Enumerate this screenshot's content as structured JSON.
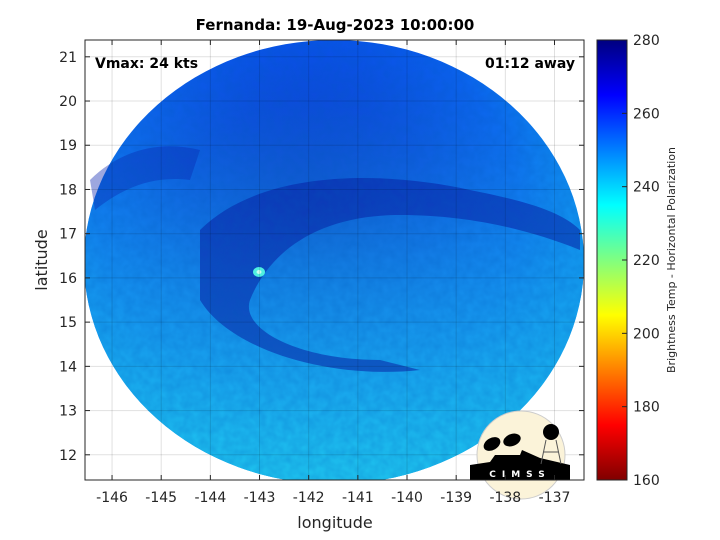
{
  "title": "Fernanda: 19-Aug-2023 10:00:00",
  "annotations": {
    "vmax": "Vmax: 24 kts",
    "time_away": "01:12 away"
  },
  "xaxis": {
    "label": "longitude",
    "ticks": [
      -146,
      -145,
      -144,
      -143,
      -142,
      -141,
      -140,
      -139,
      -138,
      -137
    ],
    "range": [
      -146.55,
      -136.4
    ]
  },
  "yaxis": {
    "label": "latitude",
    "ticks": [
      12,
      13,
      14,
      15,
      16,
      17,
      18,
      19,
      20,
      21
    ],
    "range": [
      11.43,
      21.38
    ]
  },
  "grid": true,
  "colorbar": {
    "label": "Brightness Temp - Horizontal Polarization",
    "ticks": [
      160,
      180,
      200,
      220,
      240,
      260,
      280
    ],
    "range": [
      160,
      280
    ],
    "colormap": "jet"
  },
  "logo": {
    "text": "CIMSS"
  },
  "colors": {
    "cold_core": "#0a1aa0",
    "mid": "#0a50f0",
    "warm_edge": "#1ec8f0"
  }
}
